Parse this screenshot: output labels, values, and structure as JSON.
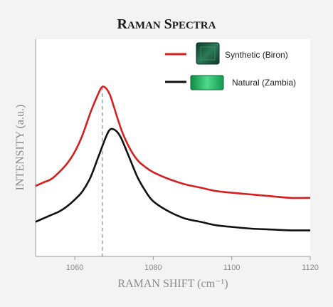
{
  "chart_data": {
    "type": "line",
    "title": "Raman Spectra",
    "xlabel": "RAMAN SHIFT (cm⁻¹)",
    "ylabel": "INTENSITY (a.u.)",
    "xlim": [
      1050,
      1120
    ],
    "ylim": [
      0,
      1
    ],
    "x_ticks": [
      1060,
      1080,
      1100,
      1120
    ],
    "y_ticks_shown": false,
    "grid": false,
    "legend_placement": "top-right",
    "reference_line_x": 1067,
    "series": [
      {
        "name": "Synthetic (Biron)",
        "color": "#d62020",
        "points": [
          [
            1050,
            0.35
          ],
          [
            1052,
            0.37
          ],
          [
            1054,
            0.39
          ],
          [
            1056,
            0.43
          ],
          [
            1058,
            0.48
          ],
          [
            1060,
            0.55
          ],
          [
            1062,
            0.65
          ],
          [
            1064,
            0.78
          ],
          [
            1066,
            0.89
          ],
          [
            1067,
            0.93
          ],
          [
            1068,
            0.92
          ],
          [
            1069,
            0.88
          ],
          [
            1070,
            0.81
          ],
          [
            1072,
            0.67
          ],
          [
            1074,
            0.57
          ],
          [
            1076,
            0.5
          ],
          [
            1078,
            0.46
          ],
          [
            1080,
            0.43
          ],
          [
            1084,
            0.39
          ],
          [
            1088,
            0.36
          ],
          [
            1092,
            0.34
          ],
          [
            1096,
            0.32
          ],
          [
            1100,
            0.31
          ],
          [
            1105,
            0.3
          ],
          [
            1110,
            0.29
          ],
          [
            1115,
            0.28
          ],
          [
            1120,
            0.28
          ]
        ]
      },
      {
        "name": "Natural (Zambia)",
        "color": "#111111",
        "points": [
          [
            1050,
            0.14
          ],
          [
            1052,
            0.16
          ],
          [
            1054,
            0.18
          ],
          [
            1056,
            0.2
          ],
          [
            1058,
            0.23
          ],
          [
            1060,
            0.27
          ],
          [
            1062,
            0.32
          ],
          [
            1064,
            0.4
          ],
          [
            1066,
            0.52
          ],
          [
            1068,
            0.64
          ],
          [
            1069,
            0.68
          ],
          [
            1070,
            0.68
          ],
          [
            1071,
            0.66
          ],
          [
            1072,
            0.62
          ],
          [
            1074,
            0.51
          ],
          [
            1076,
            0.4
          ],
          [
            1078,
            0.32
          ],
          [
            1080,
            0.26
          ],
          [
            1084,
            0.2
          ],
          [
            1088,
            0.16
          ],
          [
            1092,
            0.14
          ],
          [
            1096,
            0.12
          ],
          [
            1100,
            0.11
          ],
          [
            1105,
            0.1
          ],
          [
            1110,
            0.095
          ],
          [
            1115,
            0.09
          ],
          [
            1120,
            0.09
          ]
        ]
      }
    ]
  },
  "legend": {
    "items": [
      {
        "label": "Synthetic (Biron)",
        "color": "#d62020",
        "swatch_color": "#1f5a40"
      },
      {
        "label": "Natural (Zambia)",
        "color": "#111111",
        "swatch_color": "#22b060"
      }
    ]
  }
}
